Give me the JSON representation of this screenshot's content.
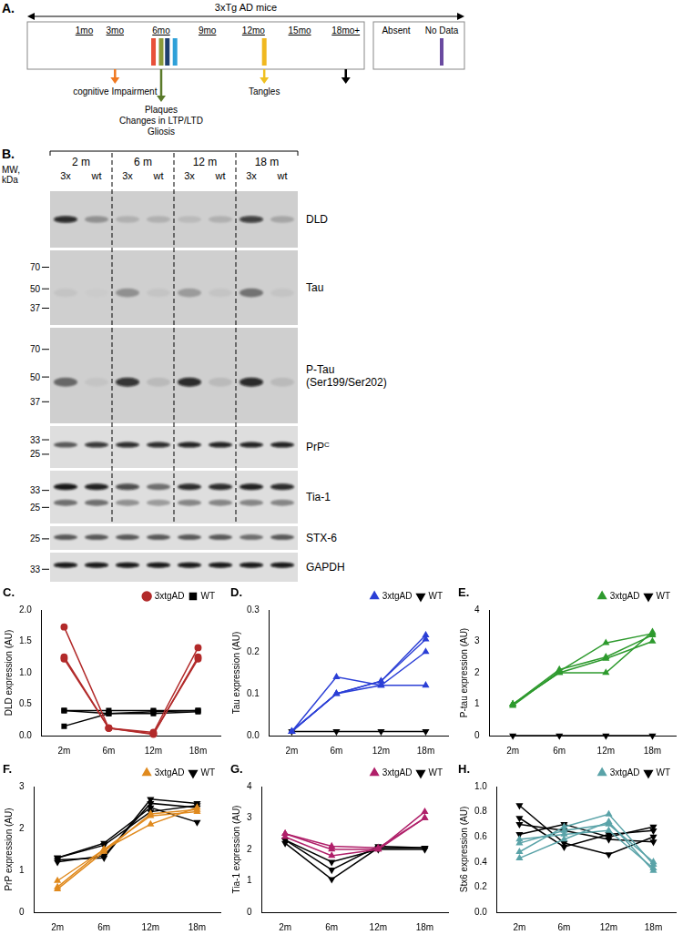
{
  "panel_a": {
    "letter": "A.",
    "title": "3xTg AD mice",
    "range": [
      -2.7,
      19.2
    ],
    "ticks": [
      {
        "value": 1,
        "label": "1mo"
      },
      {
        "value": 3,
        "label": "3mo"
      },
      {
        "value": 6,
        "label": "6mo"
      },
      {
        "value": 9,
        "label": "9mo"
      },
      {
        "value": 12,
        "label": "12mo"
      },
      {
        "value": 15,
        "label": "15mo"
      },
      {
        "value": 18,
        "label": "18mo+"
      }
    ],
    "bars": [
      {
        "value": 5.5,
        "color": "#e8503a"
      },
      {
        "value": 6.0,
        "color": "#8a9a3a"
      },
      {
        "value": 6.4,
        "color": "#1f3f6f"
      },
      {
        "value": 6.9,
        "color": "#2ea0d8"
      },
      {
        "value": 12.7,
        "color": "#f0b820"
      }
    ],
    "arrows": [
      {
        "value": 3,
        "color": "#f07820",
        "labels": [
          "cognitive Impairment"
        ]
      },
      {
        "value": 6,
        "color": "#5a7a2a",
        "labels": [
          "Plaques",
          "Changes in LTP/LTD",
          "Gliosis"
        ]
      },
      {
        "value": 12.7,
        "color": "#f0c020",
        "labels": [
          "Tangles"
        ]
      },
      {
        "value": 18,
        "color": "#000000"
      }
    ],
    "key": [
      {
        "label": "Absent"
      },
      {
        "label": "No Data",
        "color": "#6a4aa0"
      }
    ]
  },
  "panel_b": {
    "letter": "B.",
    "mw_title": "MW, kDa",
    "groups": [
      "2 m",
      "6 m",
      "12 m",
      "18 m"
    ],
    "lanes": [
      "3x",
      "wt"
    ],
    "blots": [
      {
        "label": "DLD",
        "markers": [],
        "bands": [
          {
            "kda": 55,
            "intensity": [
              0.85,
              0.3,
              0.15,
              0.15,
              0.1,
              0.15,
              0.75,
              0.2
            ]
          }
        ]
      },
      {
        "label": "Tau",
        "markers": [
          70,
          50,
          37
        ],
        "bands": [
          {
            "kda": 47,
            "intensity": [
              0.05,
              0.02,
              0.3,
              0.05,
              0.25,
              0.05,
              0.45,
              0.05
            ]
          }
        ]
      },
      {
        "label": "P-Tau (Ser199/Ser202)",
        "markers": [
          70,
          50,
          37
        ],
        "bands": [
          {
            "kda": 47,
            "intensity": [
              0.5,
              0.05,
              0.8,
              0.1,
              0.85,
              0.1,
              0.85,
              0.1
            ]
          }
        ]
      },
      {
        "label": "PrP",
        "superscript": "C",
        "markers": [
          33,
          25
        ],
        "bands": [
          {
            "kda": 30,
            "intensity": [
              0.6,
              0.8,
              0.85,
              0.85,
              0.9,
              0.9,
              0.9,
              0.9
            ]
          }
        ]
      },
      {
        "label": "Tia-1",
        "markers": [
          33,
          25
        ],
        "bands": [
          {
            "kda": 35,
            "intensity": [
              0.95,
              0.9,
              0.7,
              0.5,
              0.85,
              0.85,
              0.9,
              0.85
            ]
          },
          {
            "kda": 27,
            "intensity": [
              0.5,
              0.5,
              0.35,
              0.3,
              0.4,
              0.4,
              0.4,
              0.4
            ]
          }
        ]
      },
      {
        "label": "STX-6",
        "markers": [
          25
        ],
        "bands": [
          {
            "kda": 26,
            "intensity": [
              0.6,
              0.6,
              0.6,
              0.6,
              0.6,
              0.6,
              0.5,
              0.6
            ]
          }
        ]
      },
      {
        "label": "GAPDH",
        "markers": [
          33
        ],
        "bands": [
          {
            "kda": 36,
            "intensity": [
              0.95,
              0.95,
              0.95,
              0.95,
              0.95,
              0.95,
              0.95,
              0.95
            ]
          }
        ]
      }
    ]
  },
  "chart_data": [
    {
      "panel": "C.",
      "type": "line",
      "y_label": "DLD expression (AU)",
      "categories": [
        "2m",
        "6m",
        "12m",
        "18m"
      ],
      "ylim": [
        0,
        2
      ],
      "yticks": [
        {
          "value": 0,
          "label": "0.0"
        },
        0.5,
        {
          "value": 1,
          "label": "1.0"
        },
        1.5,
        {
          "value": 2,
          "label": "2.0"
        }
      ],
      "grid": false,
      "legend": "upper right",
      "series": [
        {
          "name": "3xtgAD",
          "color": "#b22a2a",
          "marker": "circle",
          "values": [
            1.73,
            0.12,
            0.05,
            1.4
          ]
        },
        {
          "name": "3xtgAD",
          "color": "#b22a2a",
          "marker": "circle",
          "values": [
            1.25,
            0.12,
            0.02,
            1.25
          ]
        },
        {
          "name": "3xtgAD",
          "color": "#b22a2a",
          "marker": "circle",
          "values": [
            1.22,
            0.12,
            0.03,
            1.22
          ]
        },
        {
          "name": "WT",
          "color": "#000000",
          "marker": "square",
          "values": [
            0.4,
            0.35,
            0.35,
            0.38
          ]
        },
        {
          "name": "WT",
          "color": "#000000",
          "marker": "square",
          "values": [
            0.4,
            0.4,
            0.4,
            0.4
          ]
        },
        {
          "name": "WT",
          "color": "#000000",
          "marker": "square",
          "values": [
            0.15,
            0.35,
            0.38,
            0.4
          ]
        }
      ]
    },
    {
      "panel": "D.",
      "type": "line",
      "y_label": "Tau expression (AU)",
      "categories": [
        "2m",
        "6m",
        "12m",
        "18m"
      ],
      "ylim": [
        0,
        0.3
      ],
      "yticks": [
        {
          "value": 0,
          "label": "0.0"
        },
        0.1,
        0.2,
        0.3
      ],
      "grid": false,
      "legend": "upper right",
      "series": [
        {
          "name": "3xtgAD",
          "color": "#2b3fd6",
          "marker": "triangle",
          "values": [
            0.01,
            0.14,
            0.12,
            0.12
          ]
        },
        {
          "name": "3xtgAD",
          "color": "#2b3fd6",
          "marker": "triangle",
          "values": [
            0.01,
            0.1,
            0.13,
            0.24
          ]
        },
        {
          "name": "3xtgAD",
          "color": "#2b3fd6",
          "marker": "triangle",
          "values": [
            0.01,
            0.1,
            0.12,
            0.2
          ]
        },
        {
          "name": "3xtgAD",
          "color": "#2b3fd6",
          "marker": "triangle",
          "values": [
            0.01,
            0.1,
            0.13,
            0.23
          ]
        },
        {
          "name": "WT",
          "color": "#000000",
          "marker": "triangle_down",
          "values": [
            0.01,
            0.01,
            0.01,
            0.01
          ]
        }
      ]
    },
    {
      "panel": "E.",
      "type": "line",
      "y_label": "P-tau expression (AU)",
      "categories": [
        "2m",
        "6m",
        "12m",
        "18m"
      ],
      "ylim": [
        0,
        4
      ],
      "yticks": [
        0,
        1,
        2,
        3,
        4
      ],
      "grid": false,
      "legend": "upper right",
      "series": [
        {
          "name": "3xtgAD",
          "color": "#2e9a2e",
          "marker": "triangle",
          "values": [
            1.0,
            2.1,
            2.5,
            3.2
          ]
        },
        {
          "name": "3xtgAD",
          "color": "#2e9a2e",
          "marker": "triangle",
          "values": [
            1.0,
            2.0,
            2.0,
            3.3
          ]
        },
        {
          "name": "3xtgAD",
          "color": "#2e9a2e",
          "marker": "triangle",
          "values": [
            0.95,
            2.05,
            2.95,
            3.25
          ]
        },
        {
          "name": "3xtgAD",
          "color": "#2e9a2e",
          "marker": "triangle",
          "values": [
            1.0,
            2.0,
            2.45,
            3.0
          ]
        },
        {
          "name": "WT",
          "color": "#000000",
          "marker": "triangle_down",
          "values": [
            0,
            0,
            0,
            0
          ]
        }
      ]
    },
    {
      "panel": "F.",
      "type": "line",
      "y_label": "PrP expression (AU)",
      "categories": [
        "2m",
        "6m",
        "12m",
        "18m"
      ],
      "ylim": [
        0,
        3
      ],
      "yticks": [
        0,
        1,
        2,
        3
      ],
      "grid": false,
      "legend": "upper right",
      "series": [
        {
          "name": "3xtgAD",
          "color": "#e08a1e",
          "marker": "triangle",
          "values": [
            0.75,
            1.5,
            2.3,
            2.4
          ]
        },
        {
          "name": "3xtgAD",
          "color": "#e08a1e",
          "marker": "triangle",
          "values": [
            0.6,
            1.5,
            2.1,
            2.5
          ]
        },
        {
          "name": "3xtgAD",
          "color": "#e08a1e",
          "marker": "triangle",
          "values": [
            0.55,
            1.45,
            2.35,
            2.45
          ]
        },
        {
          "name": "WT",
          "color": "#000000",
          "marker": "triangle_down",
          "values": [
            1.25,
            1.3,
            2.7,
            2.6
          ]
        },
        {
          "name": "WT",
          "color": "#000000",
          "marker": "triangle_down",
          "values": [
            1.3,
            1.65,
            2.5,
            2.15
          ]
        },
        {
          "name": "WT",
          "color": "#000000",
          "marker": "triangle_down",
          "values": [
            1.2,
            1.35,
            2.6,
            2.5
          ]
        },
        {
          "name": "WT",
          "color": "#000000",
          "marker": "triangle_down",
          "values": [
            1.3,
            1.6,
            2.4,
            2.55
          ]
        }
      ]
    },
    {
      "panel": "G.",
      "type": "line",
      "y_label": "Tia-1 expression (AU)",
      "categories": [
        "2m",
        "6m",
        "12m",
        "18m"
      ],
      "ylim": [
        0,
        4
      ],
      "yticks": [
        0,
        1,
        2,
        3,
        4
      ],
      "grid": false,
      "legend": "upper right",
      "series": [
        {
          "name": "3xtgAD",
          "color": "#b0206a",
          "marker": "triangle",
          "values": [
            2.5,
            2.0,
            2.0,
            3.2
          ]
        },
        {
          "name": "3xtgAD",
          "color": "#b0206a",
          "marker": "triangle",
          "values": [
            2.5,
            2.1,
            2.05,
            3.0
          ]
        },
        {
          "name": "3xtgAD",
          "color": "#b0206a",
          "marker": "triangle",
          "values": [
            2.4,
            1.8,
            2.0,
            3.0
          ]
        },
        {
          "name": "WT",
          "color": "#000000",
          "marker": "triangle_down",
          "values": [
            2.3,
            1.6,
            2.0,
            2.0
          ]
        },
        {
          "name": "WT",
          "color": "#000000",
          "marker": "triangle_down",
          "values": [
            2.2,
            1.05,
            2.05,
            2.05
          ]
        },
        {
          "name": "WT",
          "color": "#000000",
          "marker": "triangle_down",
          "values": [
            2.3,
            1.35,
            2.1,
            2.05
          ]
        }
      ]
    },
    {
      "panel": "H.",
      "type": "line",
      "y_label": "Stx6 expression (AU)",
      "categories": [
        "2m",
        "6m",
        "12m",
        "18m"
      ],
      "ylim": [
        0,
        1
      ],
      "yticks": [
        {
          "value": 0,
          "label": "0.0"
        },
        0.2,
        0.4,
        0.6,
        0.8,
        {
          "value": 1,
          "label": "1.0"
        }
      ],
      "grid": false,
      "legend": "upper right",
      "series": [
        {
          "name": "3xtgAD",
          "color": "#5aa3a8",
          "marker": "triangle",
          "values": [
            0.48,
            0.68,
            0.78,
            0.38
          ]
        },
        {
          "name": "3xtgAD",
          "color": "#5aa3a8",
          "marker": "triangle",
          "values": [
            0.43,
            0.58,
            0.72,
            0.33
          ]
        },
        {
          "name": "3xtgAD",
          "color": "#5aa3a8",
          "marker": "triangle",
          "values": [
            0.55,
            0.65,
            0.7,
            0.4
          ]
        },
        {
          "name": "3xtgAD",
          "color": "#5aa3a8",
          "marker": "triangle",
          "values": [
            0.58,
            0.62,
            0.65,
            0.35
          ]
        },
        {
          "name": "WT",
          "color": "#000000",
          "marker": "triangle_down",
          "values": [
            0.85,
            0.55,
            0.46,
            0.6
          ]
        },
        {
          "name": "WT",
          "color": "#000000",
          "marker": "triangle_down",
          "values": [
            0.75,
            0.52,
            0.62,
            0.65
          ]
        },
        {
          "name": "WT",
          "color": "#000000",
          "marker": "triangle_down",
          "values": [
            0.62,
            0.7,
            0.6,
            0.68
          ]
        },
        {
          "name": "WT",
          "color": "#000000",
          "marker": "triangle_down",
          "values": [
            0.7,
            0.65,
            0.58,
            0.56
          ]
        }
      ]
    }
  ]
}
